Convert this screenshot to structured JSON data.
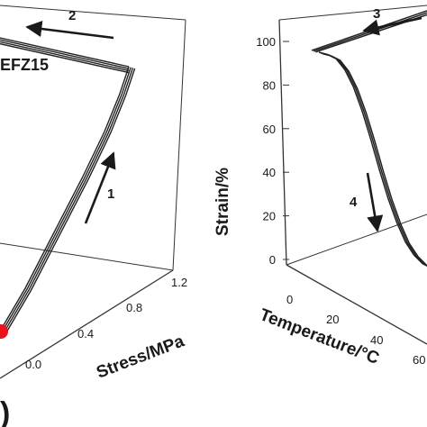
{
  "chart_data": [
    {
      "type": "line",
      "projection": "3d",
      "sample_label": "EFZ15",
      "axis": {
        "label": "Stress/MPa",
        "ticks": [
          "0.0",
          "0.4",
          "0.8",
          "1.2"
        ],
        "range": [
          0.0,
          1.2
        ]
      },
      "step_labels": [
        "1",
        "2"
      ],
      "marker_color": "#e8141c",
      "curve_color": "#222222"
    },
    {
      "type": "line",
      "projection": "3d",
      "yaxis": {
        "label": "Strain/%",
        "ticks": [
          "0",
          "20",
          "40",
          "60",
          "80",
          "100"
        ],
        "range": [
          0,
          100
        ]
      },
      "xaxis": {
        "label": "Temperature/°C",
        "ticks": [
          "0",
          "20",
          "40",
          "60"
        ]
      },
      "step_labels": [
        "3",
        "4"
      ],
      "strain_vs_temperature": {
        "x": [
          0,
          5,
          10,
          15,
          20,
          25,
          30,
          35,
          40,
          45,
          50,
          55,
          60,
          65
        ],
        "y": [
          100,
          99,
          97,
          92,
          84,
          73,
          60,
          46,
          33,
          22,
          13,
          7,
          3,
          1
        ]
      },
      "curve_color": "#222222"
    }
  ],
  "bottom_left_glyph": ")"
}
